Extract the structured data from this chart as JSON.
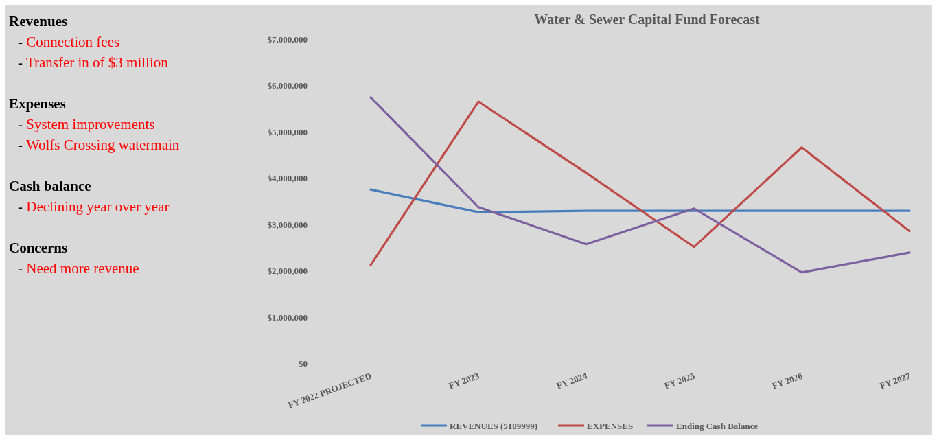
{
  "chart_data": [
    {
      "type": "other",
      "annotations": [
        "Revenues",
        "- Connection fees",
        "- Transfer in of $3 million",
        "Expenses",
        "- System improvements",
        "- Wolfs Crossing watermain",
        "Cash balance",
        "- Declining year over year",
        "Concerns",
        "- Need more revenue"
      ]
    },
    {
      "type": "line",
      "title": "Water & Sewer Capital Fund Forecast",
      "categories": [
        "FY 2022 PROJECTED",
        "FY 2023",
        "FY 2024",
        "FY 2025",
        "FY 2026",
        "FY 2027"
      ],
      "series": [
        {
          "name": "REVENUES (5109999)",
          "color": "#4a7ebb",
          "values": [
            3750000,
            3260000,
            3290000,
            3290000,
            3290000,
            3290000
          ]
        },
        {
          "name": "EXPENSES",
          "color": "#be4b48",
          "values": [
            2120000,
            5650000,
            4110000,
            2510000,
            4660000,
            2850000
          ]
        },
        {
          "name": "Ending Cash Balance",
          "color": "#7d60a0",
          "values": [
            5740000,
            3370000,
            2570000,
            3340000,
            1960000,
            2390000
          ]
        }
      ],
      "ylim": [
        0,
        7000000
      ],
      "yticks": [
        {
          "value": 0,
          "label": "$0"
        },
        {
          "value": 1000000,
          "label": "$1,000,000"
        },
        {
          "value": 2000000,
          "label": "$2,000,000"
        },
        {
          "value": 3000000,
          "label": "$3,000,000"
        },
        {
          "value": 4000000,
          "label": "$4,000,000"
        },
        {
          "value": 5000000,
          "label": "$5,000,000"
        },
        {
          "value": 6000000,
          "label": "$6,000,000"
        },
        {
          "value": 7000000,
          "label": "$7,000,000"
        }
      ],
      "legend": "bottom",
      "grid": false
    }
  ]
}
